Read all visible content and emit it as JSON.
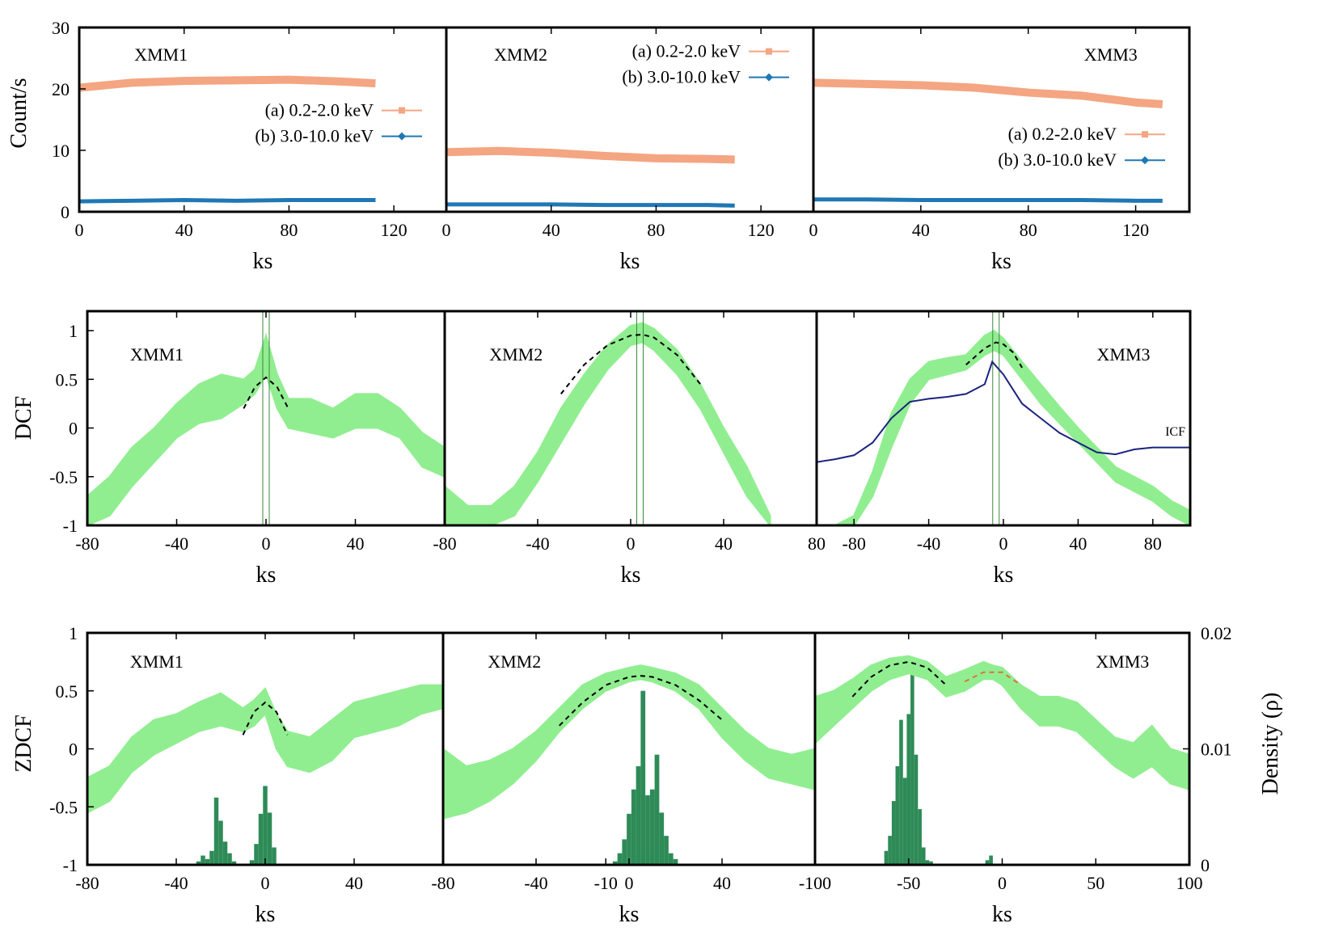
{
  "figure": {
    "row_labels": {
      "top_y": "Count/s",
      "mid_y": "DCF",
      "bot_y": "ZDCF",
      "bot_y2": "Density (ρ)"
    },
    "x_label": "ks",
    "colors": {
      "soft": "#f4a582",
      "hard": "#1f78b4",
      "band": "#90ee90",
      "fit": "#000000",
      "fit_alt": "#e07040",
      "hist": "#2e8b57",
      "icf": "#1a237e"
    }
  },
  "chart_data": [
    {
      "type": "line",
      "panel": "top-1",
      "label": "XMM1",
      "xlim": [
        0,
        140
      ],
      "ylim": [
        0,
        30
      ],
      "xticks": [
        "0",
        "40",
        "80",
        "120"
      ],
      "yticks": [
        "0",
        "10",
        "20",
        "30"
      ],
      "legend_position": "middle-right",
      "series": [
        {
          "name": "(a) 0.2-2.0 keV",
          "x": [
            0,
            20,
            40,
            60,
            80,
            100,
            113
          ],
          "y": [
            20.2,
            21.0,
            21.3,
            21.4,
            21.5,
            21.2,
            20.9
          ]
        },
        {
          "name": "(b) 3.0-10.0 keV",
          "x": [
            0,
            20,
            40,
            60,
            80,
            100,
            113
          ],
          "y": [
            1.7,
            1.8,
            1.9,
            1.8,
            1.9,
            1.9,
            1.9
          ]
        }
      ]
    },
    {
      "type": "line",
      "panel": "top-2",
      "label": "XMM2",
      "xlim": [
        0,
        140
      ],
      "ylim": [
        0,
        30
      ],
      "xticks": [
        "0",
        "40",
        "80",
        "120"
      ],
      "yticks": [],
      "legend_position": "top-right",
      "series": [
        {
          "name": "(a) 0.2-2.0 keV",
          "x": [
            0,
            20,
            40,
            60,
            80,
            100,
            110
          ],
          "y": [
            9.7,
            9.9,
            9.6,
            9.1,
            8.7,
            8.6,
            8.5
          ]
        },
        {
          "name": "(b) 3.0-10.0 keV",
          "x": [
            0,
            20,
            40,
            60,
            80,
            100,
            110
          ],
          "y": [
            1.2,
            1.2,
            1.2,
            1.1,
            1.1,
            1.1,
            1.0
          ]
        }
      ]
    },
    {
      "type": "line",
      "panel": "top-3",
      "label": "XMM3",
      "xlim": [
        0,
        140
      ],
      "ylim": [
        0,
        30
      ],
      "xticks": [
        "0",
        "40",
        "80",
        "120"
      ],
      "yticks": [],
      "legend_position": "bottom-right",
      "series": [
        {
          "name": "(a) 0.2-2.0 keV",
          "x": [
            0,
            20,
            40,
            60,
            80,
            100,
            120,
            130
          ],
          "y": [
            21.0,
            20.8,
            20.6,
            20.2,
            19.4,
            18.9,
            17.8,
            17.5
          ]
        },
        {
          "name": "(b) 3.0-10.0 keV",
          "x": [
            0,
            20,
            40,
            60,
            80,
            100,
            120,
            130
          ],
          "y": [
            2.0,
            2.0,
            1.9,
            1.9,
            1.9,
            1.9,
            1.8,
            1.8
          ]
        }
      ]
    },
    {
      "type": "area",
      "panel": "mid-1",
      "label": "XMM1",
      "xlim": [
        -80,
        80
      ],
      "ylim": [
        -1,
        1.2
      ],
      "xticks": [
        "-80",
        "-40",
        "0",
        "40"
      ],
      "yticks": [
        "-1",
        "-0.5",
        "0",
        "0.5",
        "1"
      ],
      "band": {
        "x": [
          -80,
          -70,
          -60,
          -50,
          -40,
          -30,
          -20,
          -10,
          -5,
          0,
          5,
          10,
          20,
          30,
          40,
          50,
          60,
          70,
          80
        ],
        "lo": [
          -1.0,
          -0.9,
          -0.6,
          -0.35,
          -0.1,
          0.05,
          0.1,
          0.25,
          0.35,
          0.55,
          0.2,
          0.0,
          -0.05,
          -0.1,
          0.0,
          0.0,
          -0.1,
          -0.4,
          -0.5
        ],
        "hi": [
          -0.7,
          -0.5,
          -0.2,
          0.0,
          0.25,
          0.45,
          0.55,
          0.5,
          0.6,
          0.95,
          0.55,
          0.3,
          0.3,
          0.2,
          0.35,
          0.35,
          0.2,
          -0.05,
          -0.2
        ]
      },
      "fit": {
        "x": [
          -10,
          -5,
          0,
          5,
          10
        ],
        "y": [
          0.2,
          0.42,
          0.52,
          0.42,
          0.2
        ]
      },
      "peak": 0
    },
    {
      "type": "area",
      "panel": "mid-2",
      "label": "XMM2",
      "xlim": [
        -80,
        80
      ],
      "ylim": [
        -1,
        1.2
      ],
      "xticks": [
        "-80",
        "-40",
        "0",
        "40",
        "80"
      ],
      "yticks": [],
      "band": {
        "x": [
          -80,
          -70,
          -60,
          -50,
          -40,
          -30,
          -20,
          -10,
          0,
          5,
          10,
          20,
          30,
          40,
          50,
          60
        ],
        "lo": [
          -1.0,
          -1.0,
          -1.0,
          -0.9,
          -0.55,
          -0.15,
          0.25,
          0.6,
          0.85,
          0.88,
          0.8,
          0.55,
          0.2,
          -0.25,
          -0.7,
          -1.0
        ],
        "hi": [
          -0.6,
          -0.8,
          -0.8,
          -0.6,
          -0.25,
          0.2,
          0.55,
          0.85,
          1.05,
          1.08,
          1.02,
          0.8,
          0.45,
          0.0,
          -0.4,
          -0.9
        ]
      },
      "fit": {
        "x": [
          -30,
          -20,
          -10,
          0,
          5,
          10,
          20,
          30
        ],
        "y": [
          0.35,
          0.65,
          0.85,
          0.95,
          0.96,
          0.93,
          0.75,
          0.45
        ]
      },
      "peak": 4
    },
    {
      "type": "area",
      "panel": "mid-3",
      "label": "XMM3",
      "annotation": "ICF",
      "xlim": [
        -100,
        100
      ],
      "ylim": [
        -1,
        1.2
      ],
      "xticks": [
        "-80",
        "-40",
        "0",
        "40",
        "80"
      ],
      "yticks": [],
      "band": {
        "x": [
          -100,
          -90,
          -80,
          -70,
          -60,
          -50,
          -40,
          -30,
          -20,
          -10,
          -5,
          0,
          10,
          20,
          30,
          40,
          50,
          60,
          70,
          80,
          90,
          100
        ],
        "lo": [
          -1.0,
          -1.0,
          -1.0,
          -0.7,
          -0.2,
          0.25,
          0.5,
          0.55,
          0.6,
          0.75,
          0.8,
          0.75,
          0.5,
          0.25,
          0.05,
          -0.15,
          -0.35,
          -0.55,
          -0.65,
          -0.75,
          -0.9,
          -1.0
        ],
        "hi": [
          -1.0,
          -1.0,
          -0.9,
          -0.45,
          0.15,
          0.5,
          0.68,
          0.72,
          0.75,
          0.95,
          1.0,
          0.92,
          0.68,
          0.45,
          0.22,
          0.0,
          -0.2,
          -0.4,
          -0.5,
          -0.6,
          -0.75,
          -0.85
        ]
      },
      "fit": {
        "x": [
          -20,
          -10,
          -4,
          0,
          5,
          10
        ],
        "y": [
          0.65,
          0.82,
          0.88,
          0.86,
          0.78,
          0.62
        ]
      },
      "icf": {
        "x": [
          -100,
          -90,
          -80,
          -70,
          -60,
          -50,
          -40,
          -30,
          -20,
          -10,
          -6,
          0,
          10,
          20,
          30,
          40,
          50,
          60,
          70,
          80,
          90,
          100
        ],
        "y": [
          -0.35,
          -0.32,
          -0.28,
          -0.15,
          0.1,
          0.27,
          0.3,
          0.32,
          0.35,
          0.45,
          0.68,
          0.55,
          0.25,
          0.1,
          -0.05,
          -0.15,
          -0.25,
          -0.27,
          -0.22,
          -0.2,
          -0.2,
          -0.2
        ]
      },
      "peak": -4
    },
    {
      "type": "area",
      "panel": "bot-1",
      "label": "XMM1",
      "xlim": [
        -80,
        80
      ],
      "ylim": [
        -1,
        1
      ],
      "y2lim": [
        0,
        0.02
      ],
      "xticks": [
        "-80",
        "-40",
        "0",
        "40"
      ],
      "yticks": [
        "-1",
        "-0.5",
        "0",
        "0.5",
        "1"
      ],
      "band": {
        "x": [
          -80,
          -70,
          -60,
          -50,
          -40,
          -30,
          -20,
          -10,
          -5,
          0,
          5,
          10,
          20,
          30,
          40,
          50,
          60,
          70,
          80
        ],
        "lo": [
          -0.55,
          -0.45,
          -0.2,
          -0.05,
          0.05,
          0.15,
          0.2,
          0.15,
          0.2,
          0.3,
          0.0,
          -0.15,
          -0.2,
          -0.1,
          0.1,
          0.15,
          0.2,
          0.3,
          0.35
        ],
        "hi": [
          -0.25,
          -0.15,
          0.1,
          0.25,
          0.3,
          0.4,
          0.48,
          0.35,
          0.42,
          0.52,
          0.3,
          0.15,
          0.1,
          0.25,
          0.4,
          0.45,
          0.5,
          0.55,
          0.55
        ]
      },
      "fit": {
        "x": [
          -10,
          -5,
          0,
          5,
          10
        ],
        "y": [
          0.12,
          0.32,
          0.4,
          0.32,
          0.12
        ]
      },
      "hist": {
        "x": [
          -30,
          -28,
          -26,
          -24,
          -22,
          -20,
          -18,
          -16,
          -14,
          -6,
          -4,
          -2,
          0,
          2,
          4
        ],
        "y2": [
          0.0003,
          0.0008,
          0.0005,
          0.0012,
          0.0058,
          0.0038,
          0.002,
          0.001,
          0.0003,
          0.0004,
          0.0018,
          0.0044,
          0.0068,
          0.0045,
          0.0015
        ]
      }
    },
    {
      "type": "area",
      "panel": "bot-2",
      "label": "XMM2",
      "xlim": [
        -80,
        80
      ],
      "ylim": [
        -1,
        1
      ],
      "y2lim": [
        0,
        0.02
      ],
      "xticks": [
        "-80",
        "-40",
        "0",
        "40",
        "-10"
      ],
      "yticks": [],
      "band": {
        "x": [
          -80,
          -70,
          -60,
          -50,
          -40,
          -30,
          -20,
          -10,
          0,
          5,
          10,
          20,
          30,
          40,
          50,
          60,
          70,
          80
        ],
        "lo": [
          -0.6,
          -0.55,
          -0.45,
          -0.3,
          -0.1,
          0.15,
          0.35,
          0.5,
          0.58,
          0.6,
          0.58,
          0.5,
          0.35,
          0.1,
          -0.1,
          -0.25,
          -0.3,
          -0.35
        ],
        "hi": [
          0.0,
          -0.15,
          -0.1,
          0.0,
          0.15,
          0.35,
          0.55,
          0.65,
          0.7,
          0.72,
          0.7,
          0.65,
          0.55,
          0.35,
          0.15,
          0.0,
          -0.05,
          0.0
        ]
      },
      "fit": {
        "x": [
          -30,
          -20,
          -10,
          0,
          5,
          10,
          20,
          30,
          40
        ],
        "y": [
          0.2,
          0.4,
          0.55,
          0.62,
          0.63,
          0.62,
          0.55,
          0.42,
          0.25
        ]
      },
      "hist": {
        "x": [
          -6,
          -4,
          -2,
          0,
          2,
          4,
          6,
          8,
          10,
          12,
          14,
          16,
          18,
          20
        ],
        "y2": [
          0.0003,
          0.001,
          0.0022,
          0.0044,
          0.0065,
          0.0085,
          0.015,
          0.006,
          0.0065,
          0.0095,
          0.0045,
          0.0025,
          0.001,
          0.0005
        ]
      }
    },
    {
      "type": "area",
      "panel": "bot-3",
      "label": "XMM3",
      "xlim": [
        -100,
        100
      ],
      "ylim": [
        -1,
        1
      ],
      "y2lim": [
        0,
        0.02
      ],
      "xticks": [
        "-100",
        "-50",
        "0",
        "50",
        "100"
      ],
      "yticks": [],
      "y2ticks": [
        "0",
        "0.01",
        "0.02"
      ],
      "band": {
        "x": [
          -100,
          -90,
          -80,
          -70,
          -60,
          -50,
          -40,
          -30,
          -20,
          -10,
          -5,
          0,
          10,
          20,
          30,
          40,
          50,
          60,
          70,
          80,
          90,
          100
        ],
        "lo": [
          0.05,
          0.2,
          0.35,
          0.5,
          0.6,
          0.65,
          0.6,
          0.45,
          0.5,
          0.6,
          0.6,
          0.55,
          0.35,
          0.2,
          0.2,
          0.15,
          0.0,
          -0.15,
          -0.25,
          -0.15,
          -0.3,
          -0.35
        ],
        "hi": [
          0.45,
          0.5,
          0.6,
          0.72,
          0.78,
          0.8,
          0.75,
          0.62,
          0.68,
          0.75,
          0.72,
          0.7,
          0.55,
          0.45,
          0.45,
          0.4,
          0.25,
          0.1,
          0.05,
          0.2,
          0.0,
          -0.05
        ]
      },
      "fit": {
        "x": [
          -80,
          -70,
          -60,
          -50,
          -40,
          -30
        ],
        "y": [
          0.45,
          0.62,
          0.72,
          0.75,
          0.7,
          0.55
        ]
      },
      "fit_alt": {
        "x": [
          -20,
          -10,
          0,
          10
        ],
        "y": [
          0.58,
          0.66,
          0.66,
          0.55
        ]
      },
      "hist": {
        "x": [
          -62,
          -60,
          -58,
          -56,
          -54,
          -52,
          -50,
          -48,
          -46,
          -44,
          -42,
          -40,
          -38,
          -8,
          -6
        ],
        "y2": [
          0.0012,
          0.0025,
          0.0055,
          0.0085,
          0.0125,
          0.0075,
          0.013,
          0.0165,
          0.0095,
          0.0048,
          0.0015,
          0.0004,
          0.0003,
          0.0004,
          0.0008
        ]
      }
    }
  ]
}
